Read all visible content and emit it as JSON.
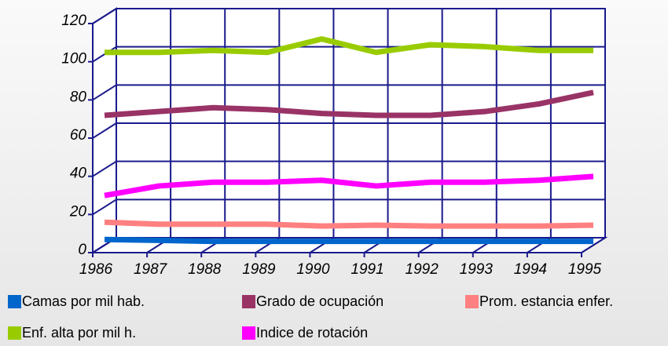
{
  "chart_data": {
    "type": "line",
    "categories": [
      "1986",
      "1987",
      "1988",
      "1989",
      "1990",
      "1991",
      "1992",
      "1993",
      "1994",
      "1995"
    ],
    "series": [
      {
        "name": "Camas por mil hab.",
        "color": "#0066cc",
        "values": [
          3,
          2.5,
          2,
          2,
          2,
          2,
          2,
          2,
          2,
          2
        ]
      },
      {
        "name": "Grado de ocupación",
        "color": "#993366",
        "values": [
          68,
          70,
          72,
          71,
          69,
          68,
          68,
          70,
          74,
          80
        ]
      },
      {
        "name": "Prom. estancia enfer.",
        "color": "#ff8080",
        "values": [
          12,
          11,
          11,
          11,
          10,
          10.5,
          10,
          10,
          10,
          10.5
        ]
      },
      {
        "name": "Enf. alta por mil h.",
        "color": "#99cc00",
        "values": [
          101,
          101,
          102,
          101,
          108,
          101,
          105,
          104,
          102,
          102
        ]
      },
      {
        "name": "Indice de rotación",
        "color": "#ff00ff",
        "values": [
          26,
          31,
          33,
          33,
          34,
          31,
          33,
          33,
          34,
          36
        ]
      }
    ],
    "ylim": [
      0,
      120
    ],
    "yticks": [
      0,
      20,
      40,
      60,
      80,
      100,
      120
    ],
    "grid": true
  }
}
